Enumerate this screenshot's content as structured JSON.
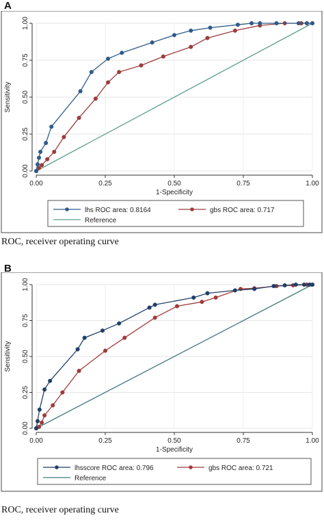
{
  "panels": [
    {
      "letter": "A",
      "caption": "ROC, receiver operating curve",
      "chart_data": {
        "type": "line",
        "title": "",
        "xlabel": "1-Specificity",
        "ylabel": "Sensitivity",
        "xlim": [
          0,
          1
        ],
        "ylim": [
          0,
          1
        ],
        "xticks": [
          "0.00",
          "0.25",
          "0.50",
          "0.75",
          "1.00"
        ],
        "yticks": [
          "0.00",
          "0.25",
          "0.50",
          "0.75",
          "1.00"
        ],
        "grid": true,
        "legend_position": "bottom",
        "series": [
          {
            "name": "lhs ROC area: 0.8164",
            "color": "#2f5b8a",
            "marker": "circle",
            "points": [
              [
                0,
                0
              ],
              [
                0.005,
                0.045
              ],
              [
                0.01,
                0.09
              ],
              [
                0.015,
                0.13
              ],
              [
                0.035,
                0.19
              ],
              [
                0.055,
                0.3
              ],
              [
                0.16,
                0.54
              ],
              [
                0.2,
                0.67
              ],
              [
                0.26,
                0.76
              ],
              [
                0.31,
                0.8
              ],
              [
                0.42,
                0.87
              ],
              [
                0.5,
                0.92
              ],
              [
                0.56,
                0.95
              ],
              [
                0.63,
                0.97
              ],
              [
                0.73,
                0.99
              ],
              [
                0.78,
                1.0
              ],
              [
                0.81,
                1.0
              ],
              [
                0.87,
                1.0
              ],
              [
                0.95,
                1.0
              ],
              [
                0.98,
                1.0
              ],
              [
                1.0,
                1.0
              ]
            ]
          },
          {
            "name": "gbs ROC area: 0.717",
            "color": "#9b3b3b",
            "marker": "circle",
            "points": [
              [
                0,
                0
              ],
              [
                0.01,
                0.02
              ],
              [
                0.02,
                0.04
              ],
              [
                0.04,
                0.08
              ],
              [
                0.065,
                0.13
              ],
              [
                0.1,
                0.23
              ],
              [
                0.155,
                0.36
              ],
              [
                0.215,
                0.49
              ],
              [
                0.26,
                0.6
              ],
              [
                0.3,
                0.67
              ],
              [
                0.38,
                0.715
              ],
              [
                0.46,
                0.775
              ],
              [
                0.56,
                0.84
              ],
              [
                0.62,
                0.9
              ],
              [
                0.72,
                0.95
              ],
              [
                0.81,
                0.985
              ],
              [
                0.9,
                1.0
              ],
              [
                0.96,
                1.0
              ],
              [
                0.98,
                1.0
              ],
              [
                1.0,
                1.0
              ]
            ]
          },
          {
            "name": "Reference",
            "color": "#5a9e8e",
            "marker": "none",
            "points": [
              [
                0,
                0
              ],
              [
                1,
                1
              ]
            ]
          }
        ]
      }
    },
    {
      "letter": "B",
      "caption": "ROC, receiver operating curve",
      "chart_data": {
        "type": "line",
        "title": "",
        "xlabel": "1-Specificity",
        "ylabel": "Sensitivity",
        "xlim": [
          0,
          1
        ],
        "ylim": [
          0,
          1
        ],
        "xticks": [
          "0.00",
          "0.25",
          "0.50",
          "0.75",
          "1.00"
        ],
        "yticks": [
          "0.00",
          "0.25",
          "0.50",
          "0.75",
          "1.00"
        ],
        "grid": true,
        "legend_position": "bottom",
        "series": [
          {
            "name": "lhsscore ROC area: 0.796",
            "color": "#1f3f66",
            "marker": "circle",
            "points": [
              [
                0,
                0
              ],
              [
                0.005,
                0.05
              ],
              [
                0.012,
                0.13
              ],
              [
                0.03,
                0.27
              ],
              [
                0.05,
                0.33
              ],
              [
                0.15,
                0.55
              ],
              [
                0.175,
                0.63
              ],
              [
                0.24,
                0.68
              ],
              [
                0.3,
                0.73
              ],
              [
                0.41,
                0.84
              ],
              [
                0.43,
                0.86
              ],
              [
                0.57,
                0.91
              ],
              [
                0.62,
                0.94
              ],
              [
                0.72,
                0.96
              ],
              [
                0.79,
                0.97
              ],
              [
                0.86,
                0.99
              ],
              [
                0.9,
                0.995
              ],
              [
                0.94,
                1.0
              ],
              [
                0.97,
                1.0
              ],
              [
                0.99,
                1.0
              ],
              [
                1.0,
                1.0
              ]
            ]
          },
          {
            "name": "gbs ROC area: 0.721",
            "color": "#a13a3a",
            "marker": "circle",
            "points": [
              [
                0,
                0
              ],
              [
                0.01,
                0.01
              ],
              [
                0.02,
                0.04
              ],
              [
                0.03,
                0.09
              ],
              [
                0.06,
                0.16
              ],
              [
                0.095,
                0.25
              ],
              [
                0.155,
                0.4
              ],
              [
                0.25,
                0.54
              ],
              [
                0.32,
                0.63
              ],
              [
                0.43,
                0.77
              ],
              [
                0.51,
                0.85
              ],
              [
                0.6,
                0.88
              ],
              [
                0.65,
                0.91
              ],
              [
                0.74,
                0.97
              ],
              [
                0.79,
                0.975
              ],
              [
                0.87,
                0.99
              ],
              [
                0.93,
                0.995
              ],
              [
                0.98,
                1.0
              ],
              [
                1.0,
                1.0
              ]
            ]
          },
          {
            "name": "Reference",
            "color": "#3e7c7a",
            "marker": "none",
            "points": [
              [
                0,
                0
              ],
              [
                1,
                1
              ]
            ]
          }
        ]
      }
    }
  ]
}
